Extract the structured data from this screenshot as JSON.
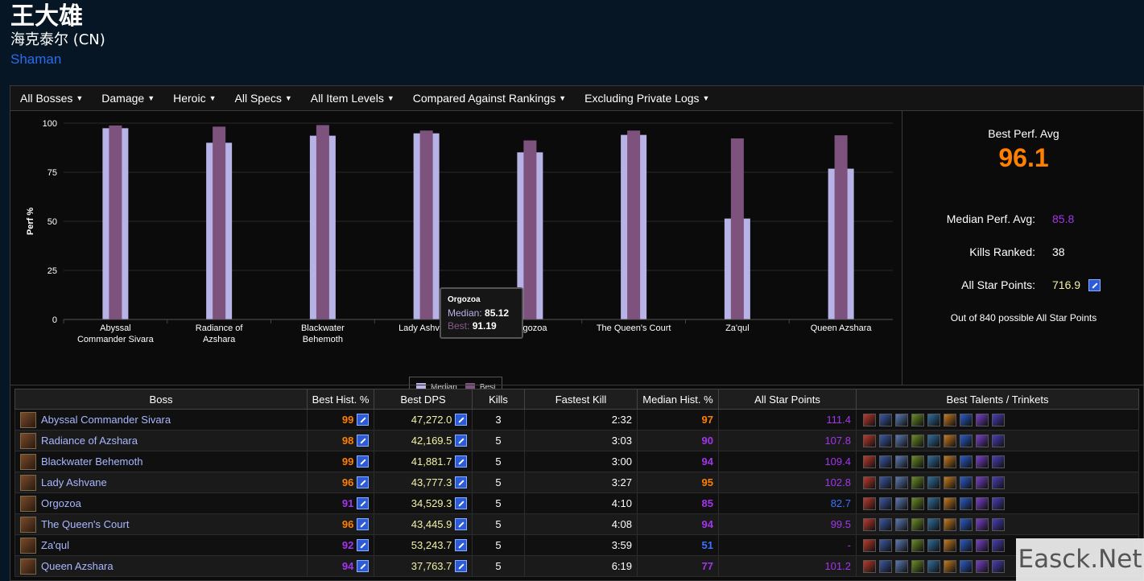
{
  "header": {
    "character_name": "王大雄",
    "server": "海克泰尔 (CN)",
    "class_name": "Shaman"
  },
  "filters": [
    {
      "label": "All Bosses"
    },
    {
      "label": "Damage"
    },
    {
      "label": "Heroic"
    },
    {
      "label": "All Specs"
    },
    {
      "label": "All Item Levels"
    },
    {
      "label": "Compared Against Rankings"
    },
    {
      "label": "Excluding Private Logs"
    }
  ],
  "chart_data": {
    "type": "bar",
    "categories": [
      "Abyssal Commander Sivara",
      "Radiance of Azshara",
      "Blackwater Behemoth",
      "Lady Ashvane",
      "Orgozoa",
      "The Queen's Court",
      "Za'qul",
      "Queen Azshara"
    ],
    "category_lines": [
      [
        "Abyssal",
        "Commander Sivara"
      ],
      [
        "Radiance of",
        "Azshara"
      ],
      [
        "Blackwater",
        "Behemoth"
      ],
      [
        "Lady Ashvane"
      ],
      [
        "Orgozoa"
      ],
      [
        "The Queen's Court"
      ],
      [
        "Za'qul"
      ],
      [
        "Queen Azshara"
      ]
    ],
    "series": [
      {
        "name": "Median",
        "values": [
          97.4,
          90,
          93.6,
          94.8,
          85.12,
          94,
          51.4,
          76.8
        ],
        "color": "#b7b3e6"
      },
      {
        "name": "Best",
        "values": [
          98.8,
          98.2,
          99,
          96.2,
          91.19,
          96.2,
          92.2,
          93.8
        ],
        "color": "#7d537e"
      }
    ],
    "ylabel": "Perf %",
    "ylim": [
      0,
      100
    ],
    "yticks": [
      0,
      25,
      50,
      75,
      100
    ],
    "grid": true,
    "legend_position": "bottom-center"
  },
  "tooltip": {
    "title": "Orgozoa",
    "median_label": "Median:",
    "median_value": "85.12",
    "best_label": "Best:",
    "best_value": "91.19"
  },
  "summary": {
    "best_perf_label": "Best Perf. Avg",
    "best_perf_value": "96.1",
    "median_label": "Median Perf. Avg:",
    "median_value": "85.8",
    "kills_label": "Kills Ranked:",
    "kills_value": "38",
    "asp_label": "All Star Points:",
    "asp_value": "716.9",
    "note": "Out of 840 possible All Star Points",
    "colors": {
      "best": "#ff8000",
      "median": "#a335ee",
      "asp": "#f2f2a8"
    }
  },
  "table": {
    "headers": [
      "Boss",
      "Best Hist. %",
      "Best DPS",
      "Kills",
      "Fastest Kill",
      "Median Hist. %",
      "All Star Points",
      "Best Talents / Trinkets"
    ],
    "rows": [
      {
        "boss": "Abyssal Commander Sivara",
        "best_pct": "99",
        "best_dps": "47,272.0",
        "kills": "3",
        "fastest": "2:32",
        "median_pct": "97",
        "asp": "111.4",
        "best_cls": "pct-legend",
        "med_cls": "pct-legend",
        "asp_cls": "asp"
      },
      {
        "boss": "Radiance of Azshara",
        "best_pct": "98",
        "best_dps": "42,169.5",
        "kills": "5",
        "fastest": "3:03",
        "median_pct": "90",
        "asp": "107.8",
        "best_cls": "pct-legend",
        "med_cls": "pct-epic",
        "asp_cls": "asp"
      },
      {
        "boss": "Blackwater Behemoth",
        "best_pct": "99",
        "best_dps": "41,881.7",
        "kills": "5",
        "fastest": "3:00",
        "median_pct": "94",
        "asp": "109.4",
        "best_cls": "pct-legend",
        "med_cls": "pct-epic",
        "asp_cls": "asp"
      },
      {
        "boss": "Lady Ashvane",
        "best_pct": "96",
        "best_dps": "43,777.3",
        "kills": "5",
        "fastest": "3:27",
        "median_pct": "95",
        "asp": "102.8",
        "best_cls": "pct-legend",
        "med_cls": "pct-legend",
        "asp_cls": "asp"
      },
      {
        "boss": "Orgozoa",
        "best_pct": "91",
        "best_dps": "34,529.3",
        "kills": "5",
        "fastest": "4:10",
        "median_pct": "85",
        "asp": "82.7",
        "best_cls": "pct-epic",
        "med_cls": "pct-epic",
        "asp_cls": "asp-blue"
      },
      {
        "boss": "The Queen's Court",
        "best_pct": "96",
        "best_dps": "43,445.9",
        "kills": "5",
        "fastest": "4:08",
        "median_pct": "94",
        "asp": "99.5",
        "best_cls": "pct-legend",
        "med_cls": "pct-epic",
        "asp_cls": "asp"
      },
      {
        "boss": "Za'qul",
        "best_pct": "92",
        "best_dps": "53,243.7",
        "kills": "5",
        "fastest": "3:59",
        "median_pct": "51",
        "asp": "-",
        "best_cls": "pct-epic",
        "med_cls": "pct-rare",
        "asp_cls": "asp"
      },
      {
        "boss": "Queen Azshara",
        "best_pct": "94",
        "best_dps": "37,763.7",
        "kills": "5",
        "fastest": "6:19",
        "median_pct": "77",
        "asp": "101.2",
        "best_cls": "pct-epic",
        "med_cls": "pct-epic",
        "asp_cls": "asp"
      }
    ],
    "talent_icon_colors": [
      "#c0392b",
      "#3b5aa8",
      "#5a7bb8",
      "#6b8e23",
      "#2e6e9e",
      "#c87a1e",
      "#2a5dcf",
      "#7b3fd0",
      "#4b3fbf"
    ]
  },
  "watermark": "Easck.Net"
}
